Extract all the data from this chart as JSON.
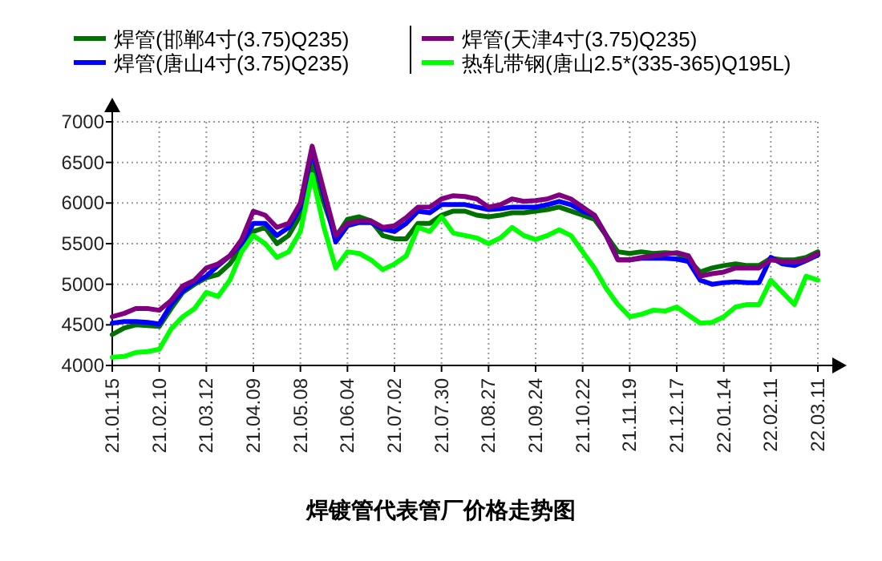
{
  "chart_data": {
    "type": "line",
    "title": "焊镀管代表管厂价格走势图",
    "categories": [
      "21.01.15",
      null,
      null,
      null,
      "21.02.10",
      null,
      null,
      null,
      "21.03.12",
      null,
      null,
      null,
      "21.04.09",
      null,
      null,
      null,
      "21.05.08",
      null,
      null,
      null,
      "21.06.04",
      null,
      null,
      null,
      "21.07.02",
      null,
      null,
      null,
      "21.07.30",
      null,
      null,
      null,
      "21.08.27",
      null,
      null,
      null,
      "21.09.24",
      null,
      null,
      null,
      "21.10.22",
      null,
      null,
      null,
      "21.11.19",
      null,
      null,
      null,
      "21.12.17",
      null,
      null,
      null,
      "22.01.14",
      null,
      null,
      null,
      "22.02.11",
      null,
      null,
      null,
      "22.03.11"
    ],
    "series": [
      {
        "name": "焊管(邯郸4寸(3.75)Q235)",
        "color": "#007000",
        "values": [
          4380,
          4460,
          4500,
          4490,
          4480,
          4700,
          4900,
          5000,
          5080,
          5120,
          5250,
          5450,
          5650,
          5700,
          5500,
          5600,
          5850,
          6500,
          6000,
          5580,
          5800,
          5830,
          5780,
          5600,
          5560,
          5560,
          5750,
          5750,
          5850,
          5900,
          5900,
          5850,
          5830,
          5850,
          5880,
          5880,
          5900,
          5920,
          5950,
          5900,
          5850,
          5800,
          5600,
          5400,
          5380,
          5400,
          5380,
          5390,
          5380,
          5300,
          5150,
          5200,
          5230,
          5250,
          5230,
          5230,
          5320,
          5300,
          5300,
          5330,
          5400
        ]
      },
      {
        "name": "焊管(唐山4寸(3.75)Q235)",
        "color": "#0000ff",
        "values": [
          4520,
          4540,
          4540,
          4530,
          4510,
          4750,
          4920,
          5020,
          5100,
          5230,
          5350,
          5500,
          5750,
          5750,
          5600,
          5700,
          5950,
          6650,
          6100,
          5520,
          5720,
          5760,
          5760,
          5680,
          5650,
          5750,
          5900,
          5880,
          5980,
          5980,
          5980,
          5950,
          5920,
          5930,
          5950,
          5950,
          5950,
          5980,
          6020,
          5980,
          5900,
          5850,
          5600,
          5300,
          5300,
          5320,
          5320,
          5320,
          5310,
          5280,
          5050,
          5000,
          5020,
          5030,
          5020,
          5020,
          5330,
          5250,
          5230,
          5290,
          5360
        ]
      },
      {
        "name": "焊管(天津4寸(3.75)Q235)",
        "color": "#800080",
        "values": [
          4600,
          4640,
          4700,
          4700,
          4680,
          4800,
          4980,
          5050,
          5200,
          5250,
          5350,
          5550,
          5900,
          5850,
          5700,
          5750,
          6000,
          6700,
          6150,
          5600,
          5750,
          5780,
          5780,
          5700,
          5720,
          5820,
          5950,
          5950,
          6050,
          6090,
          6080,
          6050,
          5950,
          5980,
          6050,
          6020,
          6030,
          6050,
          6100,
          6050,
          5950,
          5850,
          5600,
          5300,
          5300,
          5330,
          5350,
          5370,
          5390,
          5350,
          5100,
          5130,
          5150,
          5200,
          5200,
          5200,
          5300,
          5280,
          5270,
          5300,
          5380
        ]
      },
      {
        "name": "热轧带钢(唐山2.5*(335-365)Q195L)",
        "color": "#00ff00",
        "values": [
          4100,
          4110,
          4160,
          4170,
          4200,
          4450,
          4600,
          4700,
          4900,
          4850,
          5050,
          5400,
          5600,
          5500,
          5330,
          5400,
          5650,
          6350,
          5700,
          5200,
          5400,
          5380,
          5300,
          5180,
          5250,
          5350,
          5700,
          5650,
          5830,
          5630,
          5600,
          5570,
          5500,
          5570,
          5700,
          5600,
          5550,
          5600,
          5670,
          5600,
          5400,
          5200,
          4950,
          4750,
          4600,
          4630,
          4680,
          4670,
          4720,
          4620,
          4520,
          4530,
          4600,
          4720,
          4750,
          4750,
          5050,
          4900,
          4750,
          5100,
          5050
        ]
      }
    ],
    "ylim": [
      4000,
      7000
    ],
    "yticks": [
      4000,
      4500,
      5000,
      5500,
      6000,
      6500,
      7000
    ],
    "grid": true,
    "legend": "top",
    "marker": "none",
    "line_style": "solid"
  }
}
